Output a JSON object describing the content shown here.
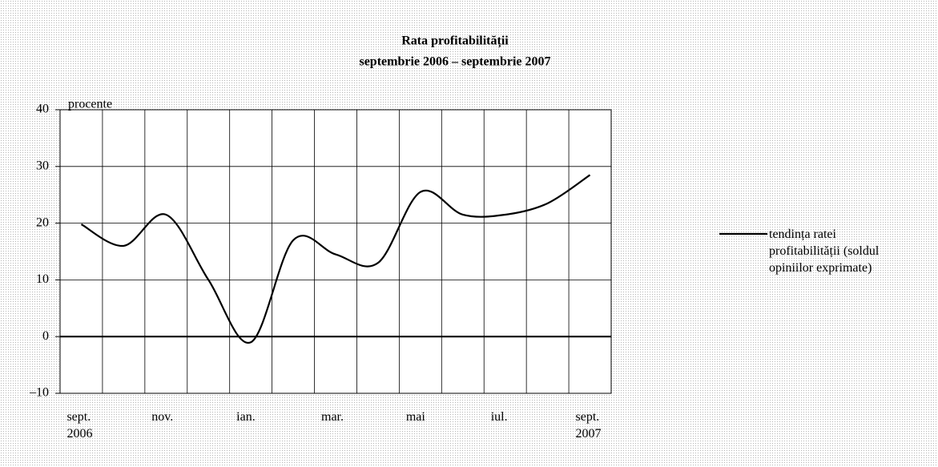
{
  "chart_data": {
    "type": "line",
    "title": "Rata profitabilității",
    "subtitle": "septembrie 2006 – septembrie 2007",
    "y_label": "procente",
    "categories": [
      "sept. 2006",
      null,
      "nov.",
      null,
      "ian.",
      null,
      "mar.",
      null,
      "mai",
      null,
      "iul.",
      null,
      "sept. 2007"
    ],
    "series": [
      {
        "name": "tendința ratei profitabilității (soldul opiniilor exprimate)",
        "color": "#000000",
        "values": [
          19.8,
          16,
          21.5,
          10,
          -1,
          17,
          14.5,
          13,
          25.5,
          21.5,
          21.5,
          23.5,
          28.5
        ]
      }
    ],
    "ylim": [
      -10,
      40
    ],
    "yticks": [
      {
        "value": -10,
        "label": "–10"
      },
      0,
      10,
      20,
      30,
      40
    ],
    "grid": true,
    "legend": "right"
  }
}
